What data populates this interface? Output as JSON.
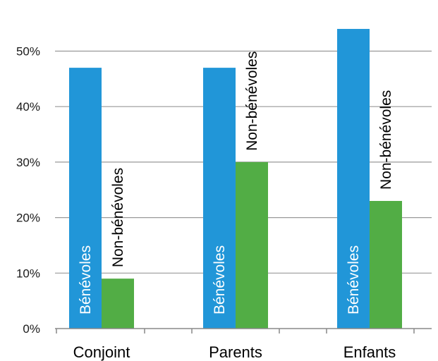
{
  "chart_data": {
    "type": "bar",
    "categories": [
      "Conjoint",
      "Parents",
      "Enfants"
    ],
    "series": [
      {
        "name": "Bénévoles",
        "values": [
          47,
          47,
          54
        ],
        "color": "#2196d8",
        "label_color": "#ffffff",
        "label_position": "inside"
      },
      {
        "name": "Non-bénévoles",
        "values": [
          9,
          30,
          23
        ],
        "color": "#52ad45",
        "label_color": "#000000",
        "label_position": "above"
      }
    ],
    "y_ticks": [
      "0%",
      "10%",
      "20%",
      "30%",
      "40%",
      "50%"
    ],
    "y_tick_values": [
      0,
      10,
      20,
      30,
      40,
      50
    ],
    "ylim": [
      0,
      56
    ],
    "grid": true,
    "legend": "none",
    "title": "",
    "xlabel": "",
    "ylabel": "",
    "gridline_color": "#999999",
    "axis_color": "#888888"
  }
}
